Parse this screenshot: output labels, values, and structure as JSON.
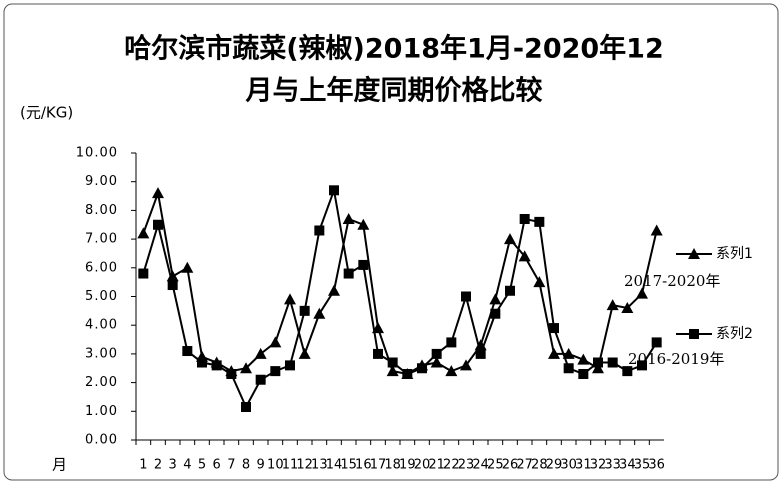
{
  "chart_data": {
    "type": "line",
    "title": [
      "哈尔滨市蔬菜(辣椒)2018年1月-2020年12",
      "月与上年度同期价格比较"
    ],
    "y_label": "(元/KG)",
    "x_label": "月",
    "categories": [
      "1",
      "2",
      "3",
      "4",
      "5",
      "6",
      "7",
      "8",
      "9",
      "10",
      "11",
      "12",
      "13",
      "14",
      "15",
      "16",
      "17",
      "18",
      "19",
      "20",
      "21",
      "22",
      "23",
      "24",
      "25",
      "26",
      "27",
      "28",
      "29",
      "30",
      "31",
      "32",
      "33",
      "34",
      "35",
      "36"
    ],
    "series": [
      {
        "name": "系列1",
        "color": "#000000",
        "marker": "triangle",
        "annotation": "2017-2020年",
        "values": [
          7.2,
          8.6,
          5.7,
          6.0,
          2.9,
          2.7,
          2.4,
          2.5,
          3.0,
          3.4,
          4.9,
          3.0,
          4.4,
          5.2,
          7.7,
          7.5,
          3.9,
          2.4,
          2.3,
          2.6,
          2.7,
          2.4,
          2.6,
          3.3,
          4.9,
          7.0,
          6.4,
          5.5,
          3.0,
          3.0,
          2.8,
          2.5,
          4.7,
          4.6,
          5.1,
          7.3
        ]
      },
      {
        "name": "系列2",
        "color": "#000000",
        "marker": "square",
        "annotation": "2016-2019年",
        "values": [
          5.8,
          7.5,
          5.4,
          3.1,
          2.7,
          2.6,
          2.3,
          1.15,
          2.1,
          2.4,
          2.6,
          4.5,
          7.3,
          8.7,
          5.8,
          6.1,
          3.0,
          2.7,
          2.3,
          2.5,
          3.0,
          3.4,
          5.0,
          3.0,
          4.4,
          5.2,
          7.7,
          7.6,
          3.9,
          2.5,
          2.3,
          2.7,
          2.7,
          2.4,
          2.6,
          3.4
        ]
      }
    ],
    "ylim": [
      0,
      10
    ],
    "yticks": [
      {
        "value": 0,
        "label": "0.00"
      },
      {
        "value": 1,
        "label": "1.00"
      },
      {
        "value": 2,
        "label": "2.00"
      },
      {
        "value": 3,
        "label": "3.00"
      },
      {
        "value": 4,
        "label": "4.00"
      },
      {
        "value": 5,
        "label": "5.00"
      },
      {
        "value": 6,
        "label": "6.00"
      },
      {
        "value": 7,
        "label": "7.00"
      },
      {
        "value": 8,
        "label": "8.00"
      },
      {
        "value": 9,
        "label": "9.00"
      },
      {
        "value": 10,
        "label": "10.00"
      }
    ],
    "grid": false
  }
}
